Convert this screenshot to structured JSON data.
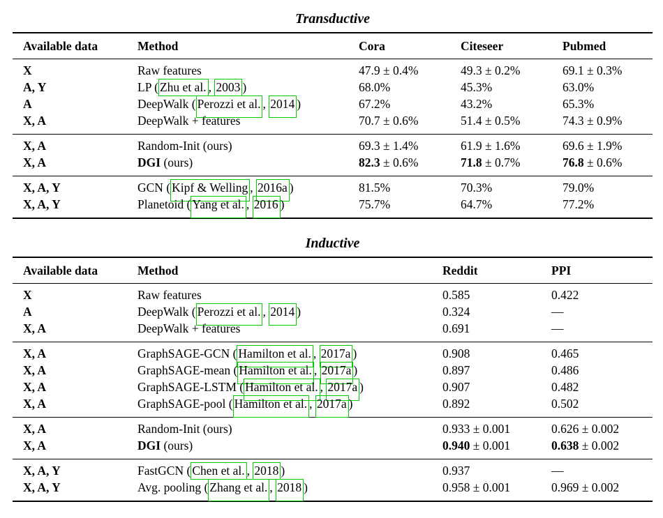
{
  "accent_green": "#00cc00",
  "tables": [
    {
      "title": "Transductive",
      "headers": [
        "Available data",
        "Method",
        "Cora",
        "Citeseer",
        "Pubmed"
      ],
      "groups": [
        {
          "rows": [
            {
              "avail": "X",
              "method": [
                {
                  "t": "Raw features"
                }
              ],
              "vals": [
                [
                  {
                    "t": "47.9 ± 0.4%"
                  }
                ],
                [
                  {
                    "t": "49.3 ± 0.2%"
                  }
                ],
                [
                  {
                    "t": "69.1 ± 0.3%"
                  }
                ]
              ]
            },
            {
              "avail": "A, Y",
              "method": [
                {
                  "t": "LP ("
                },
                {
                  "c": "Zhu et al."
                },
                {
                  "t": ", "
                },
                {
                  "c": "2003"
                },
                {
                  "t": ")"
                }
              ],
              "vals": [
                [
                  {
                    "t": "68.0%"
                  }
                ],
                [
                  {
                    "t": "45.3%"
                  }
                ],
                [
                  {
                    "t": "63.0%"
                  }
                ]
              ]
            },
            {
              "avail": "A",
              "method": [
                {
                  "t": "DeepWalk ("
                },
                {
                  "c": "Perozzi et al.",
                  "tall": true
                },
                {
                  "t": ", "
                },
                {
                  "c": "2014",
                  "tall": true
                },
                {
                  "t": ")"
                }
              ],
              "vals": [
                [
                  {
                    "t": "67.2%"
                  }
                ],
                [
                  {
                    "t": "43.2%"
                  }
                ],
                [
                  {
                    "t": "65.3%"
                  }
                ]
              ]
            },
            {
              "avail": "X, A",
              "method": [
                {
                  "t": "DeepWalk + features"
                }
              ],
              "vals": [
                [
                  {
                    "t": "70.7 ± 0.6%"
                  }
                ],
                [
                  {
                    "t": "51.4 ± 0.5%"
                  }
                ],
                [
                  {
                    "t": "74.3 ± 0.9%"
                  }
                ]
              ]
            }
          ]
        },
        {
          "rows": [
            {
              "avail": "X, A",
              "method": [
                {
                  "t": "Random-Init (ours)"
                }
              ],
              "vals": [
                [
                  {
                    "t": "69.3 ± 1.4%"
                  }
                ],
                [
                  {
                    "t": "61.9 ± 1.6%"
                  }
                ],
                [
                  {
                    "t": "69.6 ± 1.9%"
                  }
                ]
              ]
            },
            {
              "avail": "X, A",
              "method": [
                {
                  "b": "DGI"
                },
                {
                  "t": " (ours)"
                }
              ],
              "vals": [
                [
                  {
                    "b": "82.3"
                  },
                  {
                    "t": " ± 0.6%"
                  }
                ],
                [
                  {
                    "b": "71.8"
                  },
                  {
                    "t": " ± 0.7%"
                  }
                ],
                [
                  {
                    "b": "76.8"
                  },
                  {
                    "t": " ± 0.6%"
                  }
                ]
              ]
            }
          ]
        },
        {
          "rows": [
            {
              "avail": "X, A, Y",
              "method": [
                {
                  "t": "GCN ("
                },
                {
                  "c": "Kipf & Welling",
                  "tall": true
                },
                {
                  "t": ", "
                },
                {
                  "c": "2016a",
                  "tall": true
                },
                {
                  "t": ")"
                }
              ],
              "vals": [
                [
                  {
                    "t": "81.5%"
                  }
                ],
                [
                  {
                    "t": "70.3%"
                  }
                ],
                [
                  {
                    "t": "79.0%"
                  }
                ]
              ]
            },
            {
              "avail": "X, A, Y",
              "method": [
                {
                  "t": "Planetoid ("
                },
                {
                  "c": "Yang et al.",
                  "tall": true
                },
                {
                  "t": ", "
                },
                {
                  "c": "2016",
                  "tall": true
                },
                {
                  "t": ")"
                }
              ],
              "vals": [
                [
                  {
                    "t": "75.7%"
                  }
                ],
                [
                  {
                    "t": "64.7%"
                  }
                ],
                [
                  {
                    "t": "77.2%"
                  }
                ]
              ]
            }
          ]
        }
      ]
    },
    {
      "title": "Inductive",
      "headers": [
        "Available data",
        "Method",
        "Reddit",
        "PPI"
      ],
      "groups": [
        {
          "rows": [
            {
              "avail": "X",
              "method": [
                {
                  "t": "Raw features"
                }
              ],
              "vals": [
                [
                  {
                    "t": "0.585"
                  }
                ],
                [
                  {
                    "t": "0.422"
                  }
                ]
              ]
            },
            {
              "avail": "A",
              "method": [
                {
                  "t": "DeepWalk ("
                },
                {
                  "c": "Perozzi et al.",
                  "tall": true
                },
                {
                  "t": ", "
                },
                {
                  "c": "2014",
                  "tall": true
                },
                {
                  "t": ")"
                }
              ],
              "vals": [
                [
                  {
                    "t": "0.324"
                  }
                ],
                [
                  {
                    "t": "—"
                  }
                ]
              ]
            },
            {
              "avail": "X, A",
              "method": [
                {
                  "t": "DeepWalk + features"
                }
              ],
              "vals": [
                [
                  {
                    "t": "0.691"
                  }
                ],
                [
                  {
                    "t": "—"
                  }
                ]
              ]
            }
          ]
        },
        {
          "rows": [
            {
              "avail": "X, A",
              "method": [
                {
                  "t": "GraphSAGE-GCN ("
                },
                {
                  "c": "Hamilton et al.",
                  "tall": true
                },
                {
                  "t": ", "
                },
                {
                  "c": "2017a",
                  "tall": true
                },
                {
                  "t": ")"
                }
              ],
              "vals": [
                [
                  {
                    "t": "0.908"
                  }
                ],
                [
                  {
                    "t": "0.465"
                  }
                ]
              ]
            },
            {
              "avail": "X, A",
              "method": [
                {
                  "t": "GraphSAGE-mean ("
                },
                {
                  "c": "Hamilton et al.",
                  "tall": true
                },
                {
                  "t": ", "
                },
                {
                  "c": "2017a",
                  "tall": true
                },
                {
                  "t": ")"
                }
              ],
              "vals": [
                [
                  {
                    "t": "0.897"
                  }
                ],
                [
                  {
                    "t": "0.486"
                  }
                ]
              ]
            },
            {
              "avail": "X, A",
              "method": [
                {
                  "t": "GraphSAGE-LSTM ("
                },
                {
                  "c": "Hamilton et al.",
                  "tall": true
                },
                {
                  "t": ", "
                },
                {
                  "c": "2017a",
                  "tall": true
                },
                {
                  "t": ")"
                }
              ],
              "vals": [
                [
                  {
                    "t": "0.907"
                  }
                ],
                [
                  {
                    "t": "0.482"
                  }
                ]
              ]
            },
            {
              "avail": "X, A",
              "method": [
                {
                  "t": "GraphSAGE-pool ("
                },
                {
                  "c": "Hamilton et al.",
                  "tall": true
                },
                {
                  "t": ", "
                },
                {
                  "c": "2017a",
                  "tall": true
                },
                {
                  "t": ")"
                }
              ],
              "vals": [
                [
                  {
                    "t": "0.892"
                  }
                ],
                [
                  {
                    "t": "0.502"
                  }
                ]
              ]
            }
          ]
        },
        {
          "rows": [
            {
              "avail": "X, A",
              "method": [
                {
                  "t": "Random-Init (ours)"
                }
              ],
              "vals": [
                [
                  {
                    "t": "0.933 ± 0.001"
                  }
                ],
                [
                  {
                    "t": "0.626 ± 0.002"
                  }
                ]
              ]
            },
            {
              "avail": "X, A",
              "method": [
                {
                  "b": "DGI"
                },
                {
                  "t": " (ours)"
                }
              ],
              "vals": [
                [
                  {
                    "b": "0.940"
                  },
                  {
                    "t": " ± 0.001"
                  }
                ],
                [
                  {
                    "b": "0.638"
                  },
                  {
                    "t": " ± 0.002"
                  }
                ]
              ]
            }
          ]
        },
        {
          "rows": [
            {
              "avail": "X, A, Y",
              "method": [
                {
                  "t": "FastGCN ("
                },
                {
                  "c": "Chen et al."
                },
                {
                  "t": ", "
                },
                {
                  "c": "2018"
                },
                {
                  "t": ")"
                }
              ],
              "vals": [
                [
                  {
                    "t": "0.937"
                  }
                ],
                [
                  {
                    "t": "—"
                  }
                ]
              ]
            },
            {
              "avail": "X, A, Y",
              "method": [
                {
                  "t": "Avg. pooling ("
                },
                {
                  "c": "Zhang et al.",
                  "tall": true
                },
                {
                  "t": ", "
                },
                {
                  "c": "2018",
                  "tall": true
                },
                {
                  "t": ")"
                }
              ],
              "vals": [
                [
                  {
                    "t": "0.958 ± 0.001"
                  }
                ],
                [
                  {
                    "t": "0.969 ± 0.002"
                  }
                ]
              ]
            }
          ]
        }
      ]
    }
  ]
}
